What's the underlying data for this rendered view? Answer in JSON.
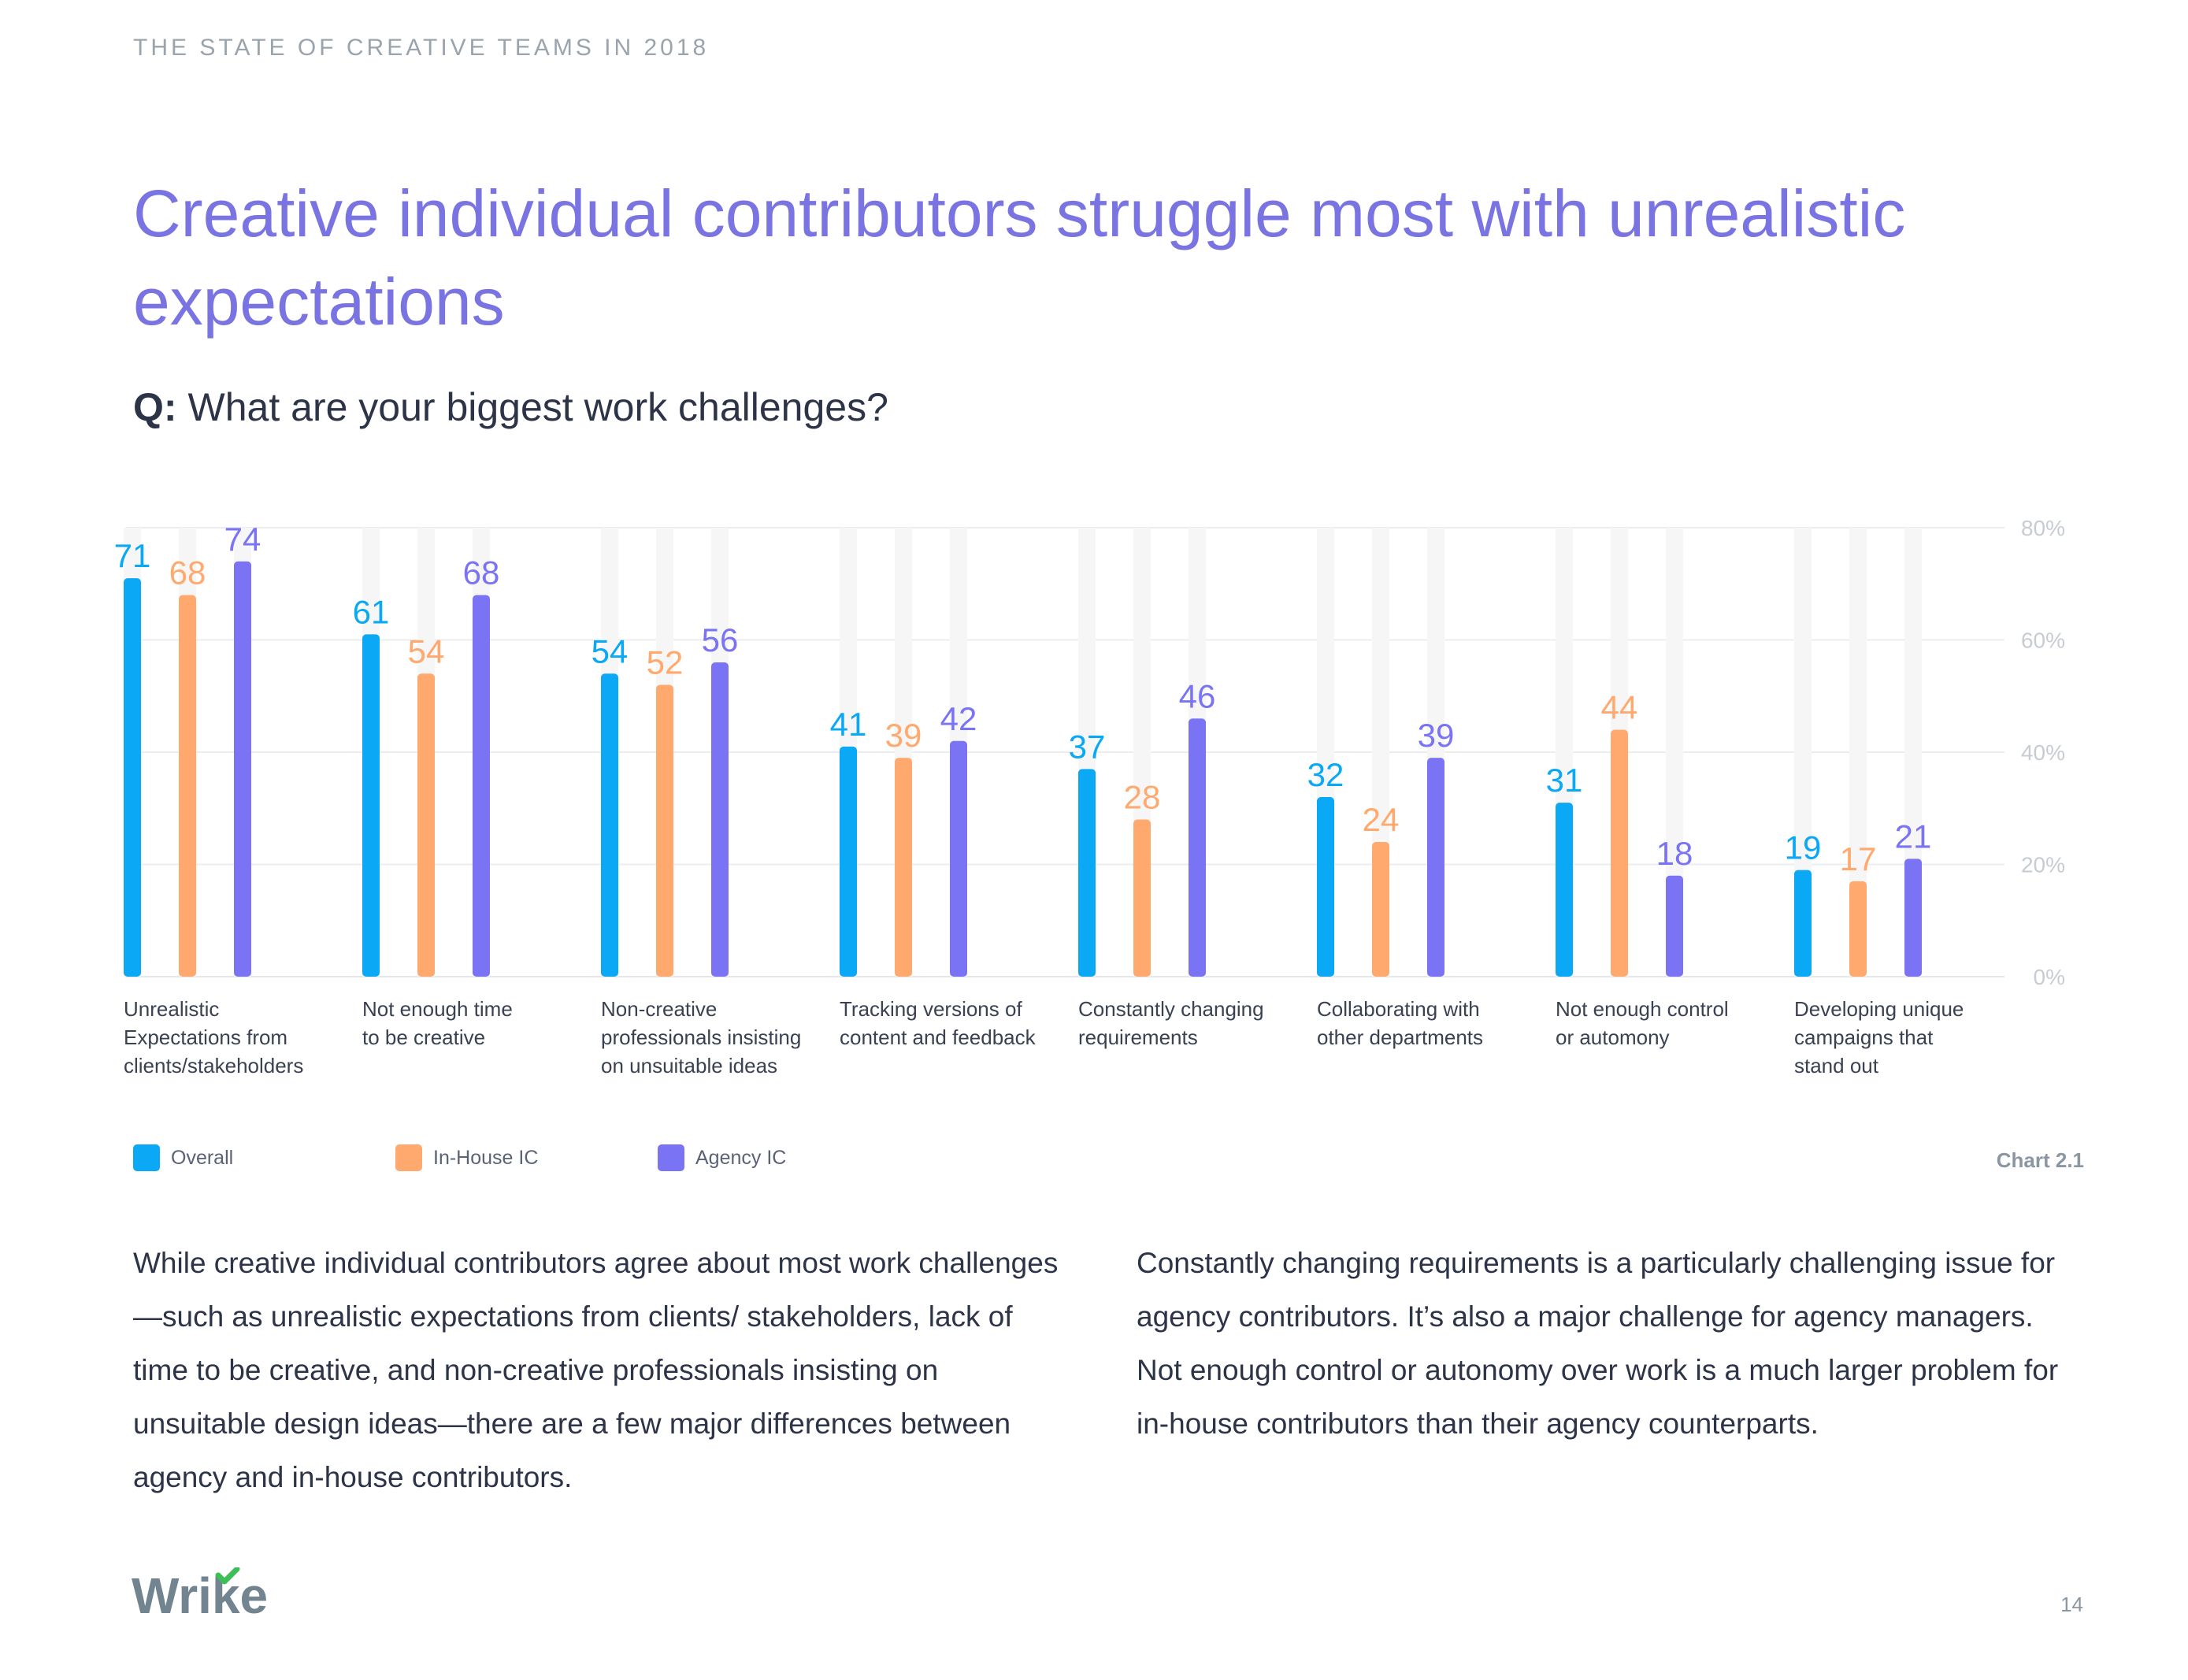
{
  "header": {
    "kicker": "THE STATE OF CREATIVE TEAMS IN 2018",
    "title": "Creative individual contributors struggle most with unrealistic expectations",
    "question_prefix": "Q:",
    "question": "What are your biggest work challenges?"
  },
  "chart_data": {
    "type": "bar",
    "categories": [
      [
        "Unrealistic",
        "Expectations from",
        "clients/stakeholders"
      ],
      [
        "Not enough time",
        "to be creative"
      ],
      [
        "Non-creative",
        "professionals insisting",
        "on unsuitable ideas"
      ],
      [
        "Tracking versions of",
        "content and feedback"
      ],
      [
        "Constantly changing",
        "requirements"
      ],
      [
        "Collaborating with",
        "other departments"
      ],
      [
        "Not enough control",
        "or automony"
      ],
      [
        "Developing unique",
        "campaigns that",
        "stand out"
      ]
    ],
    "series": [
      {
        "name": "Overall",
        "color": "#0aa8f5",
        "values": [
          71,
          61,
          54,
          41,
          37,
          32,
          31,
          19
        ]
      },
      {
        "name": "In-House IC",
        "color": "#ffa96e",
        "values": [
          68,
          54,
          52,
          39,
          28,
          24,
          44,
          17
        ]
      },
      {
        "name": "Agency IC",
        "color": "#7a74f5",
        "values": [
          74,
          68,
          56,
          42,
          46,
          39,
          18,
          21
        ]
      }
    ],
    "yticks": [
      "0%",
      "20%",
      "40%",
      "60%",
      "80%"
    ],
    "ylim": [
      0,
      80
    ],
    "grid": true,
    "legend": "bottom-left"
  },
  "chart_label": "Chart 2.1",
  "body": {
    "left": "While creative individual contributors agree about most work challenges—such as unrealistic expectations from clients/ stakeholders, lack of time to be creative, and non-creative professionals insisting on unsuitable design ideas—there are a few major differences between agency and in-house contributors.",
    "right_1": "Constantly changing requirements is a particularly challenging issue for agency contributors. It’s also a major challenge for agency managers.",
    "right_2": "Not enough control or autonomy over work is a much larger problem for in-house contributors than their agency counterparts."
  },
  "footer": {
    "logo_text": "Wrike",
    "page_number": "14"
  }
}
